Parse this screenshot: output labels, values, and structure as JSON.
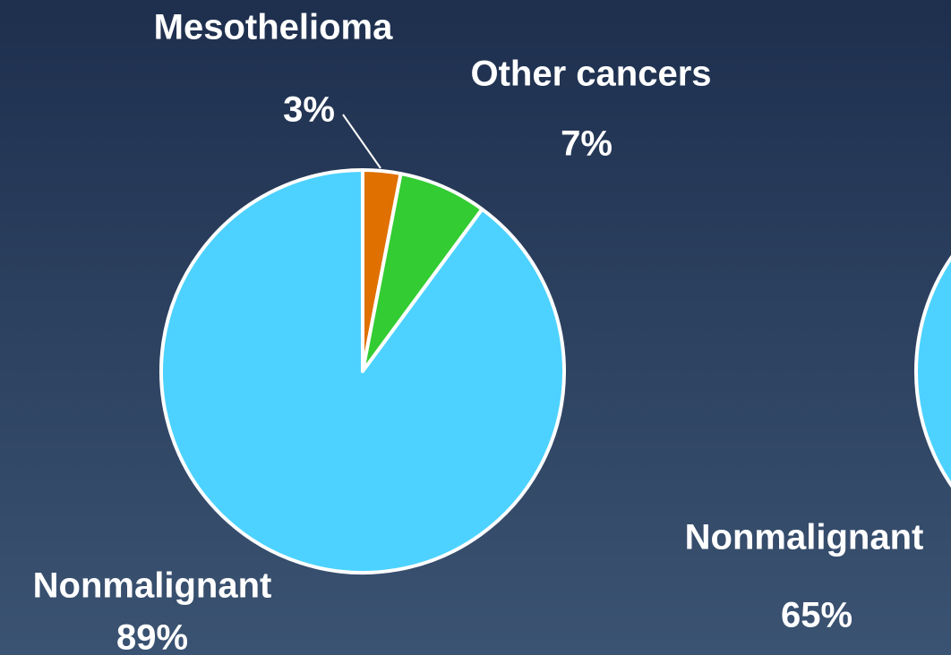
{
  "chart_data": [
    {
      "type": "pie",
      "categories": [
        "Mesothelioma",
        "Other cancers",
        "Nonmalignant"
      ],
      "values": [
        3,
        7,
        89
      ],
      "value_labels": [
        "3%",
        "7%",
        "89%"
      ],
      "colors": [
        "#e07000",
        "#33cc33",
        "#4dd2ff"
      ]
    },
    {
      "type": "pie",
      "categories": [
        "Nonmalignant"
      ],
      "values": [
        65
      ],
      "value_labels": [
        "65%"
      ],
      "colors": [
        "#4dd2ff"
      ]
    }
  ]
}
